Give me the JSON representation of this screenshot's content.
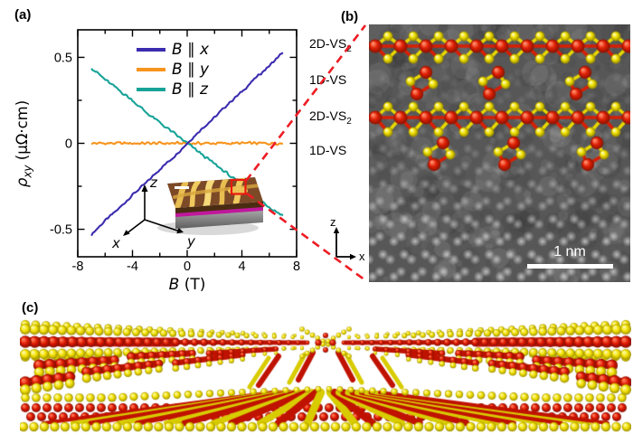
{
  "figure": {
    "panel_a": {
      "label": "(a)",
      "ylabel": {
        "symbol": "ρ",
        "subscript": "xy",
        "units": "(μΩ·cm)"
      },
      "xlabel": {
        "symbol": "B",
        "units": "(T)"
      },
      "inset_axes": {
        "x": "x",
        "y": "y",
        "z": "z"
      }
    },
    "panel_b": {
      "label": "(b)",
      "row_labels": [
        {
          "text": "2D-VS",
          "sub": "2"
        },
        {
          "text": "1D-VS",
          "sub": ""
        },
        {
          "text": "2D-VS",
          "sub": "2"
        },
        {
          "text": "1D-VS",
          "sub": ""
        }
      ],
      "scale_bar_label": "1 nm",
      "axis_vertical": "z",
      "axis_horizontal": "x",
      "atom_colors": {
        "vanadium": "#e02005",
        "sulfur": "#f0e000"
      }
    },
    "panel_c": {
      "label": "(c)",
      "atom_colors": {
        "vanadium": "#dd1600",
        "sulfur": "#f2e000"
      }
    },
    "connector_color": "#ed1c24"
  },
  "chart_data": {
    "type": "line",
    "title": "",
    "xlabel": "B (T)",
    "ylabel": "ρ_xy (μΩ·cm)",
    "xlim": [
      -8,
      8
    ],
    "ylim": [
      -0.66,
      0.66
    ],
    "x_ticks": [
      -8,
      -4,
      0,
      4,
      8
    ],
    "x_minor_ticks": [
      -6,
      -2,
      2,
      6
    ],
    "y_ticks": [
      0.5,
      0,
      -0.5
    ],
    "y_minor_ticks": [
      0.25,
      -0.25
    ],
    "grid": false,
    "legend_position": "inside top center",
    "x": [
      -7,
      -6,
      -5,
      -4,
      -3,
      -2,
      -1,
      0,
      1,
      2,
      3,
      4,
      5,
      6,
      7
    ],
    "series": [
      {
        "name": "B ∥ x",
        "color": "#3b2caf",
        "noise_amplitude": 0.008,
        "values": [
          -0.53,
          -0.45,
          -0.38,
          -0.3,
          -0.23,
          -0.15,
          -0.08,
          0.0,
          0.08,
          0.15,
          0.23,
          0.3,
          0.38,
          0.45,
          0.53
        ]
      },
      {
        "name": "B ∥ y",
        "color": "#f7941e",
        "noise_amplitude": 0.01,
        "values": [
          0,
          0,
          0,
          0,
          0,
          0,
          0,
          0,
          0,
          0,
          0,
          0,
          0,
          0,
          0
        ]
      },
      {
        "name": "B ∥ z",
        "color": "#17a398",
        "noise_amplitude": 0.01,
        "values": [
          0.44,
          0.37,
          0.31,
          0.25,
          0.18,
          0.12,
          0.06,
          0.0,
          -0.06,
          -0.12,
          -0.18,
          -0.25,
          -0.31,
          -0.37,
          -0.42
        ]
      }
    ]
  }
}
